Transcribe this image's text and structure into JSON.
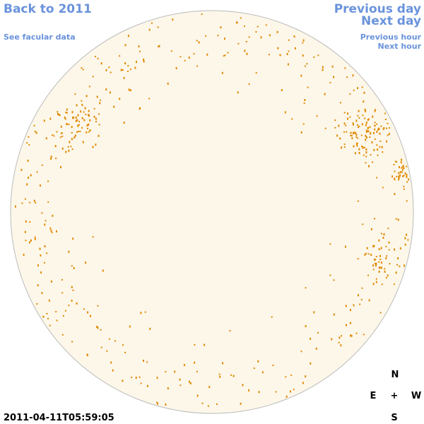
{
  "nav": {
    "back": "Back to 2011",
    "facular": "See facular data",
    "previous_day": "Previous day",
    "next_day": "Next day",
    "previous_hour": "Previous hour",
    "next_hour": "Next hour"
  },
  "timestamp": "2011-04-11T05:59:05",
  "compass": {
    "north": "N",
    "east": "E",
    "center": "+",
    "west": "W",
    "south": "S"
  }
}
